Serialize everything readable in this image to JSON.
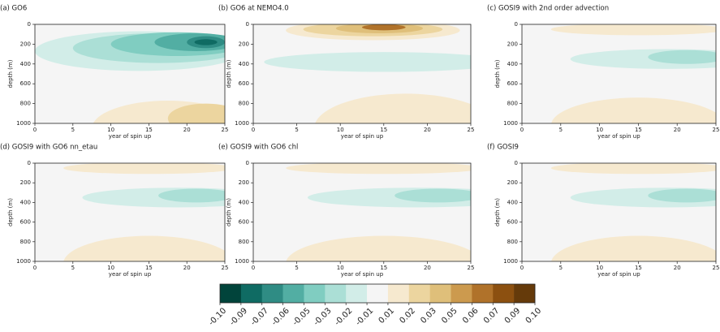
{
  "chart_data": [
    {
      "type": "contour",
      "title": "(a) GO6",
      "xlabel": "year of spin up",
      "ylabel": "depth (m)",
      "xlim": [
        0,
        25
      ],
      "xticks": [
        0,
        5,
        10,
        15,
        20,
        25
      ],
      "ylim": [
        1000,
        0
      ],
      "yticks": [
        0,
        200,
        400,
        600,
        800,
        1000
      ]
    },
    {
      "type": "contour",
      "title": "(b) GO6 at NEMO4.0",
      "xlabel": "year of spin up",
      "ylabel": "depth (m)",
      "xlim": [
        0,
        25
      ],
      "xticks": [
        0,
        5,
        10,
        15,
        20,
        25
      ],
      "ylim": [
        1000,
        0
      ],
      "yticks": [
        0,
        200,
        400,
        600,
        800,
        1000
      ]
    },
    {
      "type": "contour",
      "title": "(c) GOSI9 with 2nd order advection",
      "xlabel": "year of spin up",
      "ylabel": "depth (m)",
      "xlim": [
        0,
        25
      ],
      "xticks": [
        0,
        5,
        10,
        15,
        20,
        25
      ],
      "ylim": [
        1000,
        0
      ],
      "yticks": [
        0,
        200,
        400,
        600,
        800,
        1000
      ]
    },
    {
      "type": "contour",
      "title": "(d) GOSI9 with GO6 nn_etau",
      "xlabel": "year of spin up",
      "ylabel": "depth (m)",
      "xlim": [
        0,
        25
      ],
      "xticks": [
        0,
        5,
        10,
        15,
        20,
        25
      ],
      "ylim": [
        1000,
        0
      ],
      "yticks": [
        0,
        200,
        400,
        600,
        800,
        1000
      ]
    },
    {
      "type": "contour",
      "title": "(e) GOSI9 with GO6 chl",
      "xlabel": "year of spin up",
      "ylabel": "depth (m)",
      "xlim": [
        0,
        25
      ],
      "xticks": [
        0,
        5,
        10,
        15,
        20,
        25
      ],
      "ylim": [
        1000,
        0
      ],
      "yticks": [
        0,
        200,
        400,
        600,
        800,
        1000
      ]
    },
    {
      "type": "contour",
      "title": "(f) GOSI9",
      "xlabel": "year of spin up",
      "ylabel": "depth (m)",
      "xlim": [
        0,
        25
      ],
      "xticks": [
        0,
        5,
        10,
        15,
        20,
        25
      ],
      "ylim": [
        1000,
        0
      ],
      "yticks": [
        0,
        200,
        400,
        600,
        800,
        1000
      ]
    },
    {
      "type": "colorbar",
      "xlim": [
        -0.1,
        0.1
      ],
      "xticks": [
        {
          "value": -0.1,
          "label": "-0.10"
        },
        -0.09,
        -0.07,
        -0.06,
        -0.05,
        -0.03,
        -0.02,
        -0.01,
        0.01,
        0.02,
        0.03,
        0.05,
        0.06,
        0.07,
        0.09,
        {
          "value": 0.1,
          "label": "0.10"
        }
      ],
      "colors": [
        "#01443b",
        "#0f6b63",
        "#2f8c84",
        "#52aea3",
        "#80cdc1",
        "#abdfd6",
        "#d2ede8",
        "#f5f5f5",
        "#f6e9cf",
        "#ecd59f",
        "#dfbf7a",
        "#cc9a4e",
        "#b0722a",
        "#8c5010",
        "#653a0a"
      ]
    }
  ]
}
